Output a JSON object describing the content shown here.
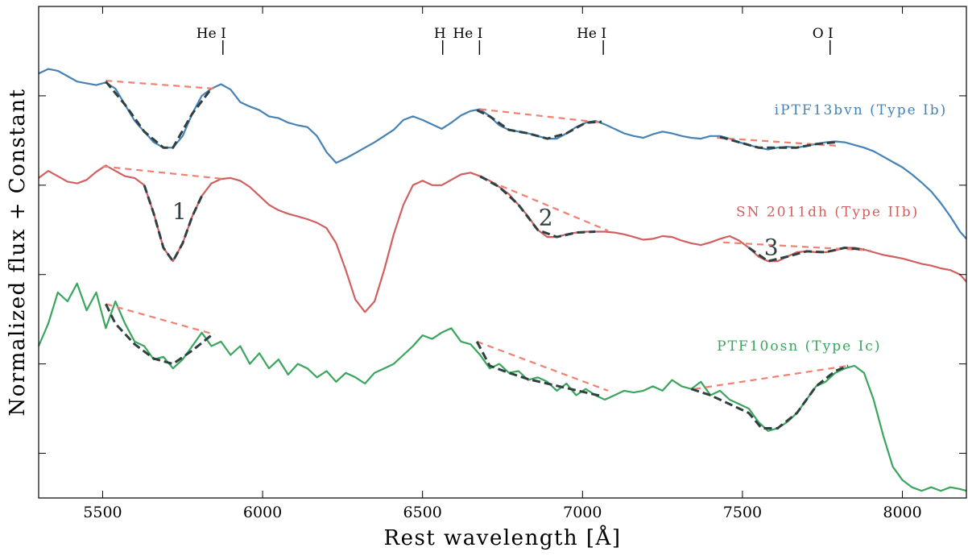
{
  "chart_data": {
    "type": "line",
    "xlabel": "Rest wavelength [Å]",
    "ylabel": "Normalized flux + Constant",
    "xlim": [
      5300,
      8200
    ],
    "x_ticks": [
      5500,
      6000,
      6500,
      7000,
      7500,
      8000
    ],
    "ylim": [
      0,
      5.5
    ],
    "y_ticks": [
      0.5,
      1.5,
      2.5,
      3.5,
      4.5
    ],
    "line_markers": [
      {
        "label": "He I",
        "x": 5876
      },
      {
        "label": "H",
        "x": 6563
      },
      {
        "label": "He I",
        "x": 6678
      },
      {
        "label": "He I",
        "x": 7065
      },
      {
        "label": "O I",
        "x": 7774
      }
    ],
    "series": [
      {
        "name": "iPTF13bvn (Type Ib)",
        "color": "#4682b4",
        "x": [
          5300,
          5330,
          5360,
          5390,
          5420,
          5450,
          5480,
          5510,
          5540,
          5570,
          5600,
          5630,
          5660,
          5690,
          5720,
          5750,
          5780,
          5810,
          5840,
          5870,
          5900,
          5930,
          5960,
          5990,
          6020,
          6050,
          6080,
          6110,
          6140,
          6170,
          6200,
          6230,
          6260,
          6290,
          6320,
          6350,
          6380,
          6410,
          6440,
          6470,
          6500,
          6530,
          6560,
          6590,
          6620,
          6650,
          6680,
          6710,
          6740,
          6770,
          6800,
          6830,
          6860,
          6890,
          6920,
          6950,
          6980,
          7010,
          7040,
          7070,
          7100,
          7130,
          7160,
          7190,
          7220,
          7250,
          7280,
          7310,
          7340,
          7370,
          7400,
          7430,
          7460,
          7490,
          7520,
          7550,
          7580,
          7610,
          7640,
          7670,
          7700,
          7730,
          7760,
          7790,
          7820,
          7850,
          7880,
          7910,
          7940,
          7970,
          8000,
          8030,
          8060,
          8090,
          8120,
          8150,
          8180,
          8200
        ],
        "y": [
          4.75,
          4.8,
          4.78,
          4.72,
          4.66,
          4.64,
          4.62,
          4.65,
          4.58,
          4.4,
          4.22,
          4.1,
          3.98,
          3.92,
          3.92,
          4.05,
          4.3,
          4.5,
          4.58,
          4.63,
          4.57,
          4.43,
          4.38,
          4.34,
          4.27,
          4.25,
          4.2,
          4.17,
          4.15,
          4.05,
          3.87,
          3.75,
          3.8,
          3.86,
          3.92,
          3.98,
          4.05,
          4.12,
          4.23,
          4.27,
          4.23,
          4.18,
          4.13,
          4.2,
          4.28,
          4.33,
          4.35,
          4.27,
          4.17,
          4.12,
          4.1,
          4.08,
          4.05,
          4.02,
          4.02,
          4.08,
          4.15,
          4.2,
          4.22,
          4.18,
          4.13,
          4.08,
          4.05,
          4.03,
          4.07,
          4.1,
          4.08,
          4.05,
          4.03,
          4.02,
          4.05,
          4.05,
          4.02,
          3.98,
          3.95,
          3.92,
          3.9,
          3.92,
          3.93,
          3.92,
          3.94,
          3.96,
          3.98,
          3.99,
          3.98,
          3.95,
          3.92,
          3.88,
          3.82,
          3.76,
          3.7,
          3.62,
          3.53,
          3.43,
          3.3,
          3.15,
          2.98,
          2.9
        ]
      },
      {
        "name": "SN 2011dh (Type IIb)",
        "color": "#d15f5f",
        "x": [
          5300,
          5330,
          5360,
          5390,
          5420,
          5450,
          5480,
          5510,
          5540,
          5570,
          5600,
          5630,
          5660,
          5690,
          5720,
          5750,
          5780,
          5810,
          5840,
          5870,
          5900,
          5930,
          5960,
          5990,
          6020,
          6050,
          6080,
          6110,
          6140,
          6170,
          6200,
          6230,
          6260,
          6290,
          6320,
          6350,
          6380,
          6410,
          6440,
          6470,
          6500,
          6530,
          6560,
          6590,
          6620,
          6650,
          6680,
          6710,
          6740,
          6770,
          6800,
          6830,
          6860,
          6890,
          6920,
          6950,
          6980,
          7010,
          7040,
          7070,
          7100,
          7130,
          7160,
          7190,
          7220,
          7250,
          7280,
          7310,
          7340,
          7370,
          7400,
          7430,
          7460,
          7490,
          7520,
          7550,
          7580,
          7610,
          7640,
          7670,
          7700,
          7730,
          7760,
          7790,
          7820,
          7850,
          7880,
          7910,
          7940,
          7970,
          8000,
          8030,
          8060,
          8090,
          8120,
          8150,
          8180,
          8200
        ],
        "y": [
          3.58,
          3.66,
          3.6,
          3.54,
          3.52,
          3.56,
          3.65,
          3.72,
          3.66,
          3.6,
          3.58,
          3.5,
          3.18,
          2.8,
          2.65,
          2.85,
          3.15,
          3.38,
          3.52,
          3.57,
          3.58,
          3.55,
          3.48,
          3.38,
          3.28,
          3.22,
          3.18,
          3.15,
          3.12,
          3.08,
          3.02,
          2.85,
          2.55,
          2.22,
          2.08,
          2.2,
          2.55,
          2.95,
          3.28,
          3.5,
          3.55,
          3.5,
          3.5,
          3.56,
          3.62,
          3.64,
          3.6,
          3.55,
          3.48,
          3.4,
          3.28,
          3.15,
          3.0,
          2.92,
          2.92,
          2.95,
          2.97,
          2.98,
          2.98,
          2.98,
          2.97,
          2.95,
          2.92,
          2.89,
          2.9,
          2.93,
          2.92,
          2.88,
          2.85,
          2.83,
          2.86,
          2.9,
          2.93,
          2.88,
          2.8,
          2.7,
          2.65,
          2.65,
          2.7,
          2.75,
          2.76,
          2.75,
          2.75,
          2.77,
          2.8,
          2.8,
          2.78,
          2.75,
          2.72,
          2.7,
          2.68,
          2.65,
          2.62,
          2.6,
          2.57,
          2.55,
          2.5,
          2.42
        ]
      },
      {
        "name": "PTF10osn (Type Ic)",
        "color": "#3aa55c",
        "x": [
          5300,
          5330,
          5360,
          5390,
          5420,
          5450,
          5480,
          5510,
          5540,
          5570,
          5600,
          5630,
          5660,
          5690,
          5720,
          5750,
          5780,
          5810,
          5840,
          5870,
          5900,
          5930,
          5960,
          5990,
          6020,
          6050,
          6080,
          6110,
          6140,
          6170,
          6200,
          6230,
          6260,
          6290,
          6320,
          6350,
          6380,
          6410,
          6440,
          6470,
          6500,
          6530,
          6560,
          6590,
          6620,
          6650,
          6680,
          6710,
          6740,
          6770,
          6800,
          6830,
          6860,
          6890,
          6920,
          6950,
          6980,
          7010,
          7040,
          7070,
          7100,
          7130,
          7160,
          7190,
          7220,
          7250,
          7280,
          7310,
          7340,
          7370,
          7400,
          7430,
          7460,
          7490,
          7520,
          7550,
          7580,
          7610,
          7640,
          7670,
          7700,
          7730,
          7760,
          7790,
          7820,
          7850,
          7880,
          7910,
          7940,
          7970,
          8000,
          8030,
          8060,
          8090,
          8120,
          8150,
          8180,
          8200
        ],
        "y": [
          1.7,
          1.95,
          2.3,
          2.2,
          2.4,
          2.1,
          2.3,
          1.9,
          2.2,
          1.95,
          1.75,
          1.7,
          1.55,
          1.58,
          1.45,
          1.55,
          1.7,
          1.85,
          1.7,
          1.75,
          1.6,
          1.7,
          1.5,
          1.62,
          1.45,
          1.55,
          1.38,
          1.5,
          1.45,
          1.35,
          1.42,
          1.3,
          1.4,
          1.35,
          1.28,
          1.4,
          1.45,
          1.5,
          1.6,
          1.7,
          1.82,
          1.78,
          1.85,
          1.9,
          1.75,
          1.72,
          1.6,
          1.45,
          1.5,
          1.4,
          1.42,
          1.32,
          1.35,
          1.3,
          1.2,
          1.28,
          1.15,
          1.22,
          1.15,
          1.1,
          1.15,
          1.2,
          1.18,
          1.2,
          1.25,
          1.2,
          1.32,
          1.25,
          1.22,
          1.3,
          1.15,
          1.2,
          1.1,
          1.05,
          1.0,
          0.85,
          0.75,
          0.78,
          0.85,
          0.95,
          1.1,
          1.25,
          1.3,
          1.4,
          1.45,
          1.48,
          1.4,
          1.1,
          0.7,
          0.35,
          0.2,
          0.12,
          0.08,
          0.12,
          0.08,
          0.12,
          0.1,
          0.08
        ]
      }
    ],
    "dashed_segments": [
      {
        "color": "#f08070",
        "points": [
          [
            5510,
            4.67
          ],
          [
            5850,
            4.58
          ]
        ]
      },
      {
        "color": "#f08070",
        "points": [
          [
            6680,
            4.35
          ],
          [
            7060,
            4.2
          ]
        ]
      },
      {
        "color": "#f08070",
        "points": [
          [
            7420,
            4.03
          ],
          [
            7800,
            3.94
          ]
        ]
      },
      {
        "color": "#f08070",
        "points": [
          [
            5500,
            3.71
          ],
          [
            5880,
            3.57
          ]
        ]
      },
      {
        "color": "#f08070",
        "points": [
          [
            6680,
            3.59
          ],
          [
            7080,
            2.99
          ]
        ]
      },
      {
        "color": "#f08070",
        "points": [
          [
            7440,
            2.86
          ],
          [
            7900,
            2.77
          ]
        ]
      },
      {
        "color": "#f08070",
        "points": [
          [
            5510,
            2.17
          ],
          [
            5850,
            1.83
          ]
        ]
      },
      {
        "color": "#f08070",
        "points": [
          [
            6670,
            1.75
          ],
          [
            7080,
            1.2
          ]
        ]
      },
      {
        "color": "#f08070",
        "points": [
          [
            7350,
            1.22
          ],
          [
            7830,
            1.48
          ]
        ]
      }
    ],
    "fit_segments": [
      {
        "color": "#2f4040",
        "points": [
          [
            5510,
            4.66
          ],
          [
            5570,
            4.4
          ],
          [
            5630,
            4.1
          ],
          [
            5690,
            3.92
          ],
          [
            5720,
            3.92
          ],
          [
            5780,
            4.3
          ],
          [
            5840,
            4.58
          ]
        ]
      },
      {
        "color": "#2f4040",
        "points": [
          [
            6670,
            4.34
          ],
          [
            6710,
            4.27
          ],
          [
            6770,
            4.12
          ],
          [
            6830,
            4.08
          ],
          [
            6890,
            4.02
          ],
          [
            6950,
            4.08
          ],
          [
            7010,
            4.2
          ],
          [
            7060,
            4.21
          ]
        ]
      },
      {
        "color": "#2f4040",
        "points": [
          [
            7430,
            4.04
          ],
          [
            7490,
            3.98
          ],
          [
            7550,
            3.92
          ],
          [
            7610,
            3.92
          ],
          [
            7670,
            3.92
          ],
          [
            7730,
            3.96
          ],
          [
            7790,
            3.98
          ]
        ]
      },
      {
        "color": "#2f4040",
        "points": [
          [
            5630,
            3.5
          ],
          [
            5660,
            3.18
          ],
          [
            5690,
            2.8
          ],
          [
            5720,
            2.65
          ],
          [
            5750,
            2.85
          ],
          [
            5780,
            3.15
          ],
          [
            5810,
            3.38
          ]
        ]
      },
      {
        "color": "#2f4040",
        "points": [
          [
            6680,
            3.6
          ],
          [
            6740,
            3.48
          ],
          [
            6800,
            3.28
          ],
          [
            6860,
            3.0
          ],
          [
            6920,
            2.92
          ],
          [
            6980,
            2.97
          ],
          [
            7040,
            2.98
          ]
        ]
      },
      {
        "color": "#2f4040",
        "points": [
          [
            7520,
            2.8
          ],
          [
            7580,
            2.65
          ],
          [
            7640,
            2.7
          ],
          [
            7700,
            2.76
          ],
          [
            7760,
            2.75
          ],
          [
            7820,
            2.8
          ],
          [
            7880,
            2.78
          ]
        ]
      },
      {
        "color": "#2f4040",
        "points": [
          [
            5510,
            2.17
          ],
          [
            5540,
            1.95
          ],
          [
            5600,
            1.72
          ],
          [
            5660,
            1.56
          ],
          [
            5720,
            1.5
          ],
          [
            5780,
            1.65
          ],
          [
            5840,
            1.82
          ]
        ]
      },
      {
        "color": "#2f4040",
        "points": [
          [
            6670,
            1.75
          ],
          [
            6710,
            1.48
          ],
          [
            6770,
            1.4
          ],
          [
            6830,
            1.33
          ],
          [
            6890,
            1.28
          ],
          [
            6950,
            1.23
          ],
          [
            7010,
            1.18
          ],
          [
            7060,
            1.14
          ]
        ]
      },
      {
        "color": "#2f4040",
        "points": [
          [
            7340,
            1.22
          ],
          [
            7400,
            1.15
          ],
          [
            7460,
            1.05
          ],
          [
            7520,
            0.95
          ],
          [
            7560,
            0.78
          ],
          [
            7610,
            0.78
          ],
          [
            7670,
            0.95
          ],
          [
            7730,
            1.25
          ],
          [
            7790,
            1.42
          ],
          [
            7830,
            1.48
          ]
        ]
      }
    ],
    "feature_labels": [
      {
        "text": "1",
        "x": 5740,
        "y": 3.12
      },
      {
        "text": "2",
        "x": 6885,
        "y": 3.05
      },
      {
        "text": "3",
        "x": 7590,
        "y": 2.72
      }
    ]
  }
}
